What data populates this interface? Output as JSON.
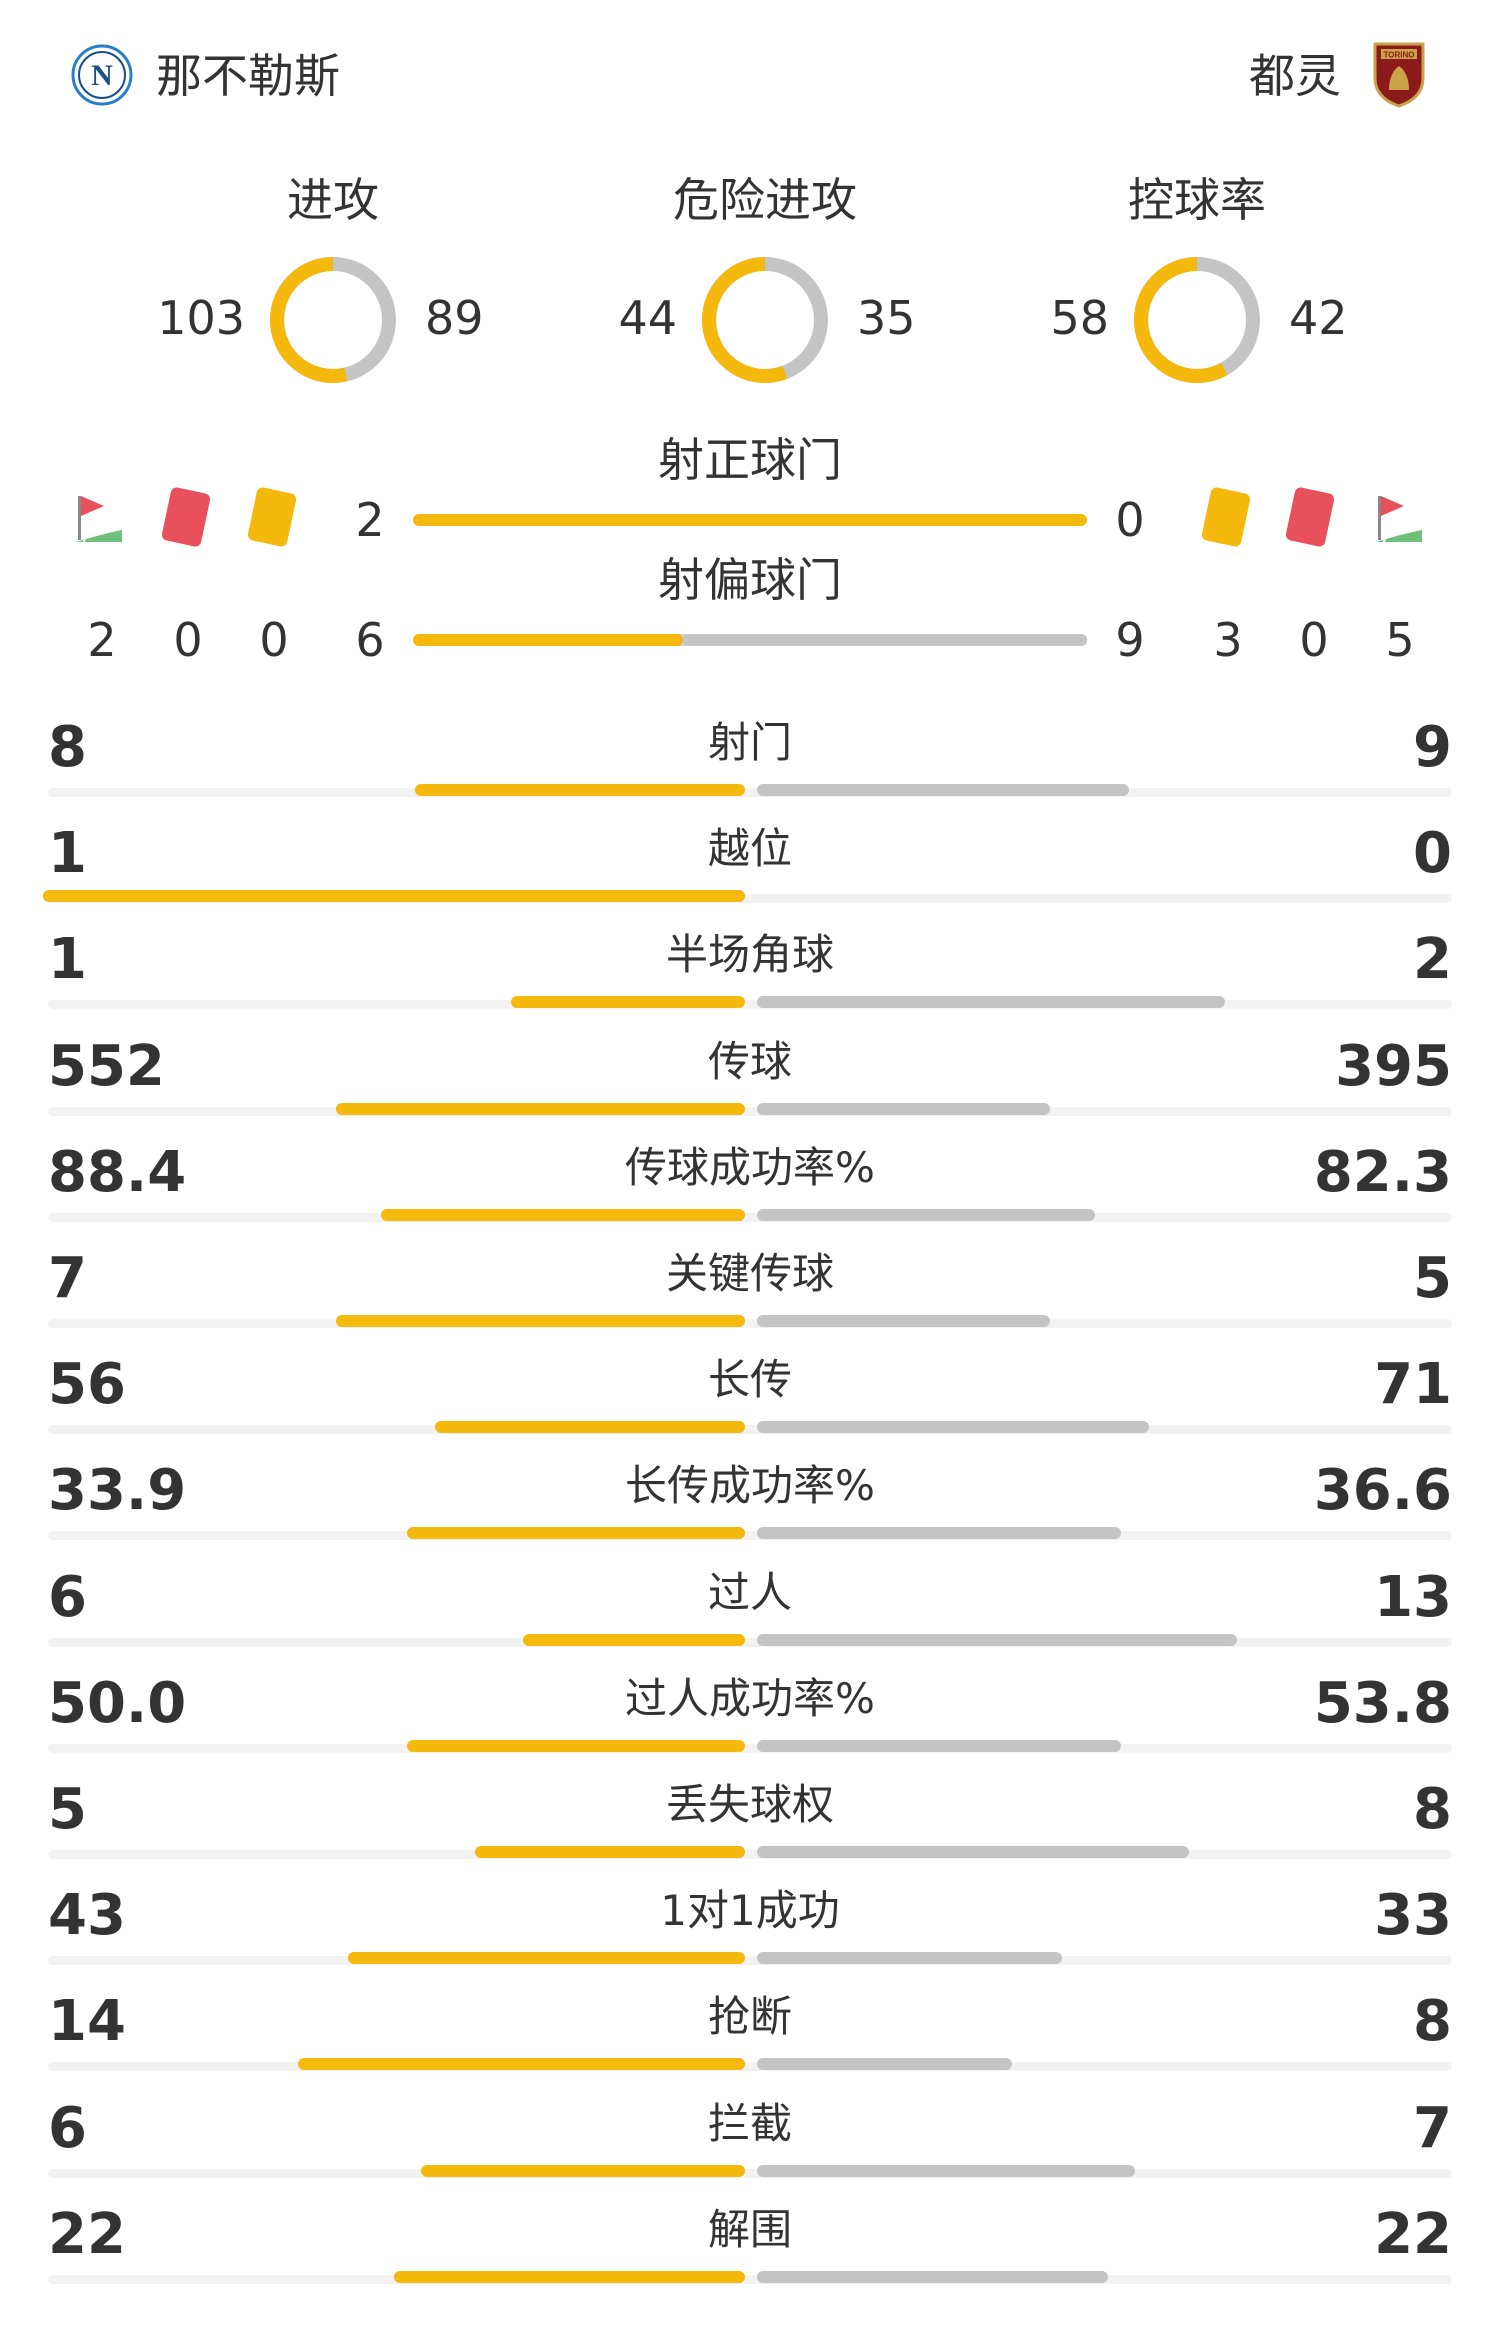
{
  "header": {
    "home_team": "那不勒斯",
    "away_team": "都灵",
    "home_logo_icon": "napoli-crest-icon",
    "away_logo_icon": "torino-crest-icon",
    "away_logo_text": "TORINO"
  },
  "colors": {
    "home": "#f5b80c",
    "away": "#c4c4c4",
    "yellow_card": "#f5b80c",
    "red_card": "#e8505b",
    "corner_flag": "#e8505b",
    "pitch": "#6fc07a"
  },
  "donuts": [
    {
      "title": "进攻",
      "home": "103",
      "away": "89",
      "home_val": 103,
      "away_val": 89
    },
    {
      "title": "危险进攻",
      "home": "44",
      "away": "35",
      "home_val": 44,
      "away_val": 35
    },
    {
      "title": "控球率",
      "home": "58",
      "away": "42",
      "home_val": 58,
      "away_val": 42
    }
  ],
  "shots_on_target": {
    "title": "射正球门",
    "home": "2",
    "away": "0",
    "home_val": 2,
    "away_val": 0
  },
  "shots_off_target": {
    "title": "射偏球门",
    "home": "6",
    "away": "9",
    "home_val": 6,
    "away_val": 9
  },
  "events": {
    "home": {
      "corners": "2",
      "red_cards": "0",
      "yellow_cards": "0"
    },
    "away": {
      "yellow_cards": "3",
      "red_cards": "0",
      "corners": "5"
    }
  },
  "stats": [
    {
      "label": "射门",
      "home": "8",
      "away": "9",
      "home_val": 8,
      "away_val": 9
    },
    {
      "label": "越位",
      "home": "1",
      "away": "0",
      "home_val": 1,
      "away_val": 0
    },
    {
      "label": "半场角球",
      "home": "1",
      "away": "2",
      "home_val": 1,
      "away_val": 2
    },
    {
      "label": "传球",
      "home": "552",
      "away": "395",
      "home_val": 552,
      "away_val": 395
    },
    {
      "label": "传球成功率%",
      "home": "88.4",
      "away": "82.3",
      "home_val": 88.4,
      "away_val": 82.3
    },
    {
      "label": "关键传球",
      "home": "7",
      "away": "5",
      "home_val": 7,
      "away_val": 5
    },
    {
      "label": "长传",
      "home": "56",
      "away": "71",
      "home_val": 56,
      "away_val": 71
    },
    {
      "label": "长传成功率%",
      "home": "33.9",
      "away": "36.6",
      "home_val": 33.9,
      "away_val": 36.6
    },
    {
      "label": "过人",
      "home": "6",
      "away": "13",
      "home_val": 6,
      "away_val": 13
    },
    {
      "label": "过人成功率%",
      "home": "50.0",
      "away": "53.8",
      "home_val": 50.0,
      "away_val": 53.8
    },
    {
      "label": "丢失球权",
      "home": "5",
      "away": "8",
      "home_val": 5,
      "away_val": 8
    },
    {
      "label": "1对1成功",
      "home": "43",
      "away": "33",
      "home_val": 43,
      "away_val": 33
    },
    {
      "label": "抢断",
      "home": "14",
      "away": "8",
      "home_val": 14,
      "away_val": 8
    },
    {
      "label": "拦截",
      "home": "6",
      "away": "7",
      "home_val": 6,
      "away_val": 7
    },
    {
      "label": "解围",
      "home": "22",
      "away": "22",
      "home_val": 22,
      "away_val": 22
    }
  ]
}
